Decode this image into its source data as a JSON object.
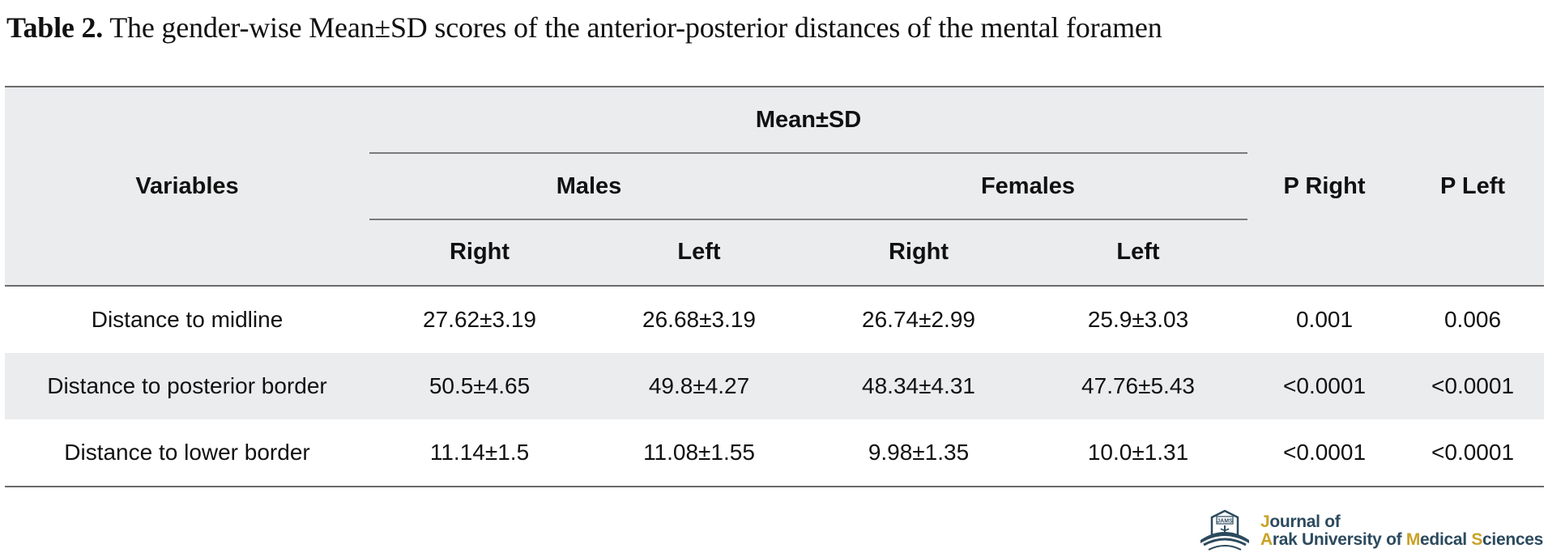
{
  "caption": {
    "label": "Table 2.",
    "text": "The gender-wise Mean±SD scores of the anterior-posterior distances of the mental foramen"
  },
  "table": {
    "header": {
      "variables": "Variables",
      "group": "Mean±SD",
      "males": "Males",
      "females": "Females",
      "p_right": "P Right",
      "p_left": "P Left",
      "right": "Right",
      "left": "Left"
    },
    "rows": [
      {
        "variable": "Distance to midline",
        "males_right": "27.62±3.19",
        "males_left": "26.68±3.19",
        "females_right": "26.74±2.99",
        "females_left": "25.9±3.03",
        "p_right": "0.001",
        "p_left": "0.006"
      },
      {
        "variable": "Distance to posterior border",
        "males_right": "50.5±4.65",
        "males_left": "49.8±4.27",
        "females_right": "48.34±4.31",
        "females_left": "47.76±5.43",
        "p_right": "<0.0001",
        "p_left": "<0.0001"
      },
      {
        "variable": "Distance to lower border",
        "males_right": "11.14±1.5",
        "males_left": "11.08±1.55",
        "females_right": "9.98±1.35",
        "females_left": "10.0±1.31",
        "p_right": "<0.0001",
        "p_left": "<0.0001"
      }
    ]
  },
  "logo": {
    "line1": "Journal of",
    "line2_a": "Arak University of ",
    "line2_m": "M",
    "line2_b": "edical ",
    "line2_s": "S",
    "line2_c": "ciences",
    "badge": "JAMS"
  },
  "colors": {
    "header_bg": "#ebecee",
    "rule": "#6b6b6b",
    "logo_blue": "#2c4a5e",
    "logo_gold": "#c9a227"
  }
}
